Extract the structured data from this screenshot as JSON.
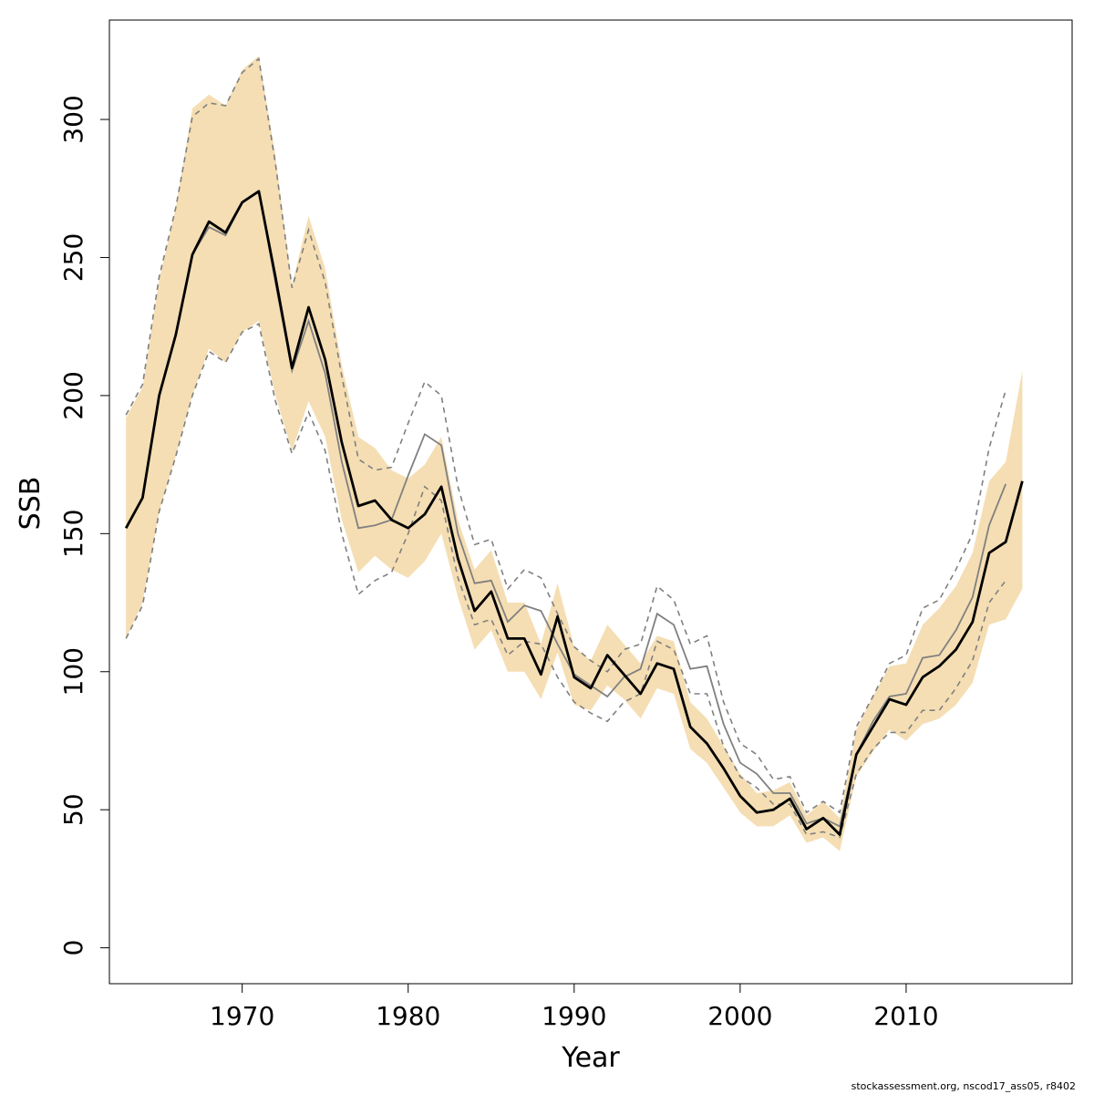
{
  "chart_data": {
    "type": "line",
    "xlabel": "Year",
    "ylabel": "SSB",
    "xlim": [
      1962,
      2020
    ],
    "ylim": [
      -13,
      336
    ],
    "x_ticks": [
      1970,
      1980,
      1990,
      2000,
      2010
    ],
    "y_ticks": [
      0,
      50,
      100,
      150,
      200,
      250,
      300
    ],
    "x_tick_labels": [
      "1970",
      "1980",
      "1990",
      "2000",
      "2010"
    ],
    "y_tick_labels": [
      "0",
      "50",
      "100",
      "150",
      "200",
      "250",
      "300"
    ],
    "grid": false,
    "legend": "none",
    "footer": "stockassessment.org, nscod17_ass05, r8402",
    "colors": {
      "band": "#f5deb3",
      "current": "#000000",
      "previous": "#808080",
      "previous_ci": "#808080"
    },
    "current": {
      "x": [
        1963,
        1964,
        1965,
        1966,
        1967,
        1968,
        1969,
        1970,
        1971,
        1972,
        1973,
        1974,
        1975,
        1976,
        1977,
        1978,
        1979,
        1980,
        1981,
        1982,
        1983,
        1984,
        1985,
        1986,
        1987,
        1988,
        1989,
        1990,
        1991,
        1992,
        1993,
        1994,
        1995,
        1996,
        1997,
        1998,
        1999,
        2000,
        2001,
        2002,
        2003,
        2004,
        2005,
        2006,
        2007,
        2008,
        2009,
        2010,
        2011,
        2012,
        2013,
        2014,
        2015,
        2016,
        2017
      ],
      "estimate": [
        152,
        163,
        200,
        222,
        251,
        263,
        259,
        270,
        274,
        243,
        210,
        232,
        213,
        183,
        160,
        162,
        155,
        152,
        157,
        167,
        141,
        122,
        129,
        112,
        112,
        99,
        120,
        98,
        94,
        106,
        99,
        92,
        103,
        101,
        80,
        74,
        65,
        55,
        49,
        50,
        54,
        43,
        47,
        41,
        70,
        80,
        90,
        88,
        98,
        102,
        108,
        118,
        143,
        147,
        169
      ],
      "lower": [
        112,
        125,
        158,
        178,
        200,
        217,
        212,
        223,
        227,
        200,
        180,
        198,
        185,
        155,
        136,
        142,
        137,
        134,
        140,
        150,
        127,
        108,
        115,
        100,
        100,
        90,
        107,
        88,
        86,
        95,
        90,
        83,
        94,
        92,
        72,
        67,
        58,
        49,
        44,
        44,
        48,
        38,
        40,
        35,
        62,
        71,
        79,
        75,
        81,
        83,
        88,
        96,
        117,
        119,
        130
      ],
      "upper": [
        192,
        203,
        242,
        268,
        304,
        309,
        305,
        318,
        323,
        287,
        240,
        265,
        246,
        211,
        185,
        181,
        173,
        170,
        175,
        185,
        155,
        137,
        144,
        125,
        125,
        110,
        132,
        109,
        104,
        117,
        110,
        103,
        113,
        111,
        89,
        83,
        73,
        63,
        56,
        57,
        60,
        48,
        53,
        47,
        79,
        91,
        102,
        103,
        117,
        123,
        131,
        143,
        169,
        176,
        209
      ]
    },
    "previous": {
      "x": [
        1963,
        1964,
        1965,
        1966,
        1967,
        1968,
        1969,
        1970,
        1971,
        1972,
        1973,
        1974,
        1975,
        1976,
        1977,
        1978,
        1979,
        1980,
        1981,
        1982,
        1983,
        1984,
        1985,
        1986,
        1987,
        1988,
        1989,
        1990,
        1991,
        1992,
        1993,
        1994,
        1995,
        1996,
        1997,
        1998,
        1999,
        2000,
        2001,
        2002,
        2003,
        2004,
        2005,
        2006,
        2007,
        2008,
        2009,
        2010,
        2011,
        2012,
        2013,
        2014,
        2015,
        2016
      ],
      "estimate": [
        152,
        163,
        200,
        222,
        251,
        261,
        258,
        270,
        274,
        241,
        209,
        227,
        208,
        176,
        152,
        153,
        155,
        171,
        186,
        182,
        150,
        132,
        133,
        118,
        124,
        122,
        110,
        99,
        95,
        91,
        98,
        101,
        121,
        117,
        101,
        102,
        81,
        67,
        63,
        56,
        56,
        45,
        47,
        44,
        70,
        82,
        91,
        92,
        105,
        106,
        115,
        127,
        153,
        168
      ],
      "lower": [
        112,
        124,
        158,
        178,
        200,
        216,
        212,
        223,
        226,
        198,
        179,
        194,
        180,
        150,
        128,
        133,
        136,
        150,
        167,
        162,
        134,
        117,
        119,
        106,
        111,
        110,
        98,
        89,
        85,
        82,
        89,
        92,
        111,
        108,
        92,
        92,
        73,
        62,
        58,
        52,
        52,
        41,
        42,
        40,
        63,
        72,
        78,
        78,
        86,
        86,
        94,
        104,
        125,
        133
      ],
      "upper": [
        193,
        204,
        243,
        268,
        301,
        306,
        305,
        317,
        322,
        284,
        239,
        260,
        241,
        207,
        177,
        173,
        174,
        190,
        205,
        200,
        167,
        146,
        148,
        130,
        137,
        134,
        121,
        109,
        104,
        100,
        108,
        110,
        131,
        126,
        110,
        113,
        89,
        74,
        70,
        61,
        62,
        49,
        53,
        49,
        80,
        91,
        103,
        106,
        123,
        126,
        137,
        150,
        181,
        202
      ]
    }
  }
}
